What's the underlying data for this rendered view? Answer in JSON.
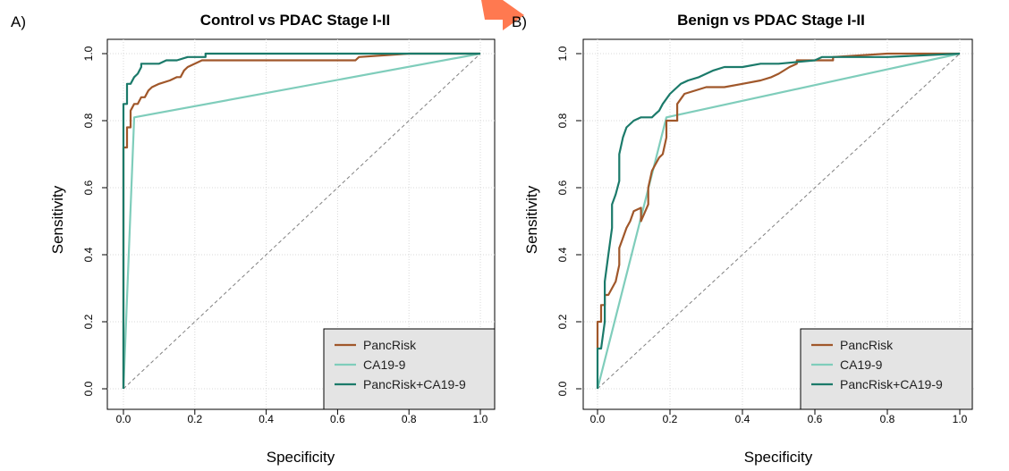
{
  "page": {
    "background": "#ffffff",
    "decoration": {
      "name": "orange-arrow-shape",
      "color": "#ff6a3d"
    }
  },
  "chart_data": [
    {
      "panel_label": "A)",
      "type": "line",
      "title": "Control  vs PDAC Stage I-II",
      "xlabel": "Specificity",
      "ylabel": "Sensitivity",
      "xlim": [
        0,
        1
      ],
      "ylim": [
        0,
        1
      ],
      "x_ticks": [
        "0.0",
        "0.2",
        "0.4",
        "0.6",
        "0.8",
        "1.0"
      ],
      "y_ticks": [
        "0.0",
        "0.2",
        "0.4",
        "0.6",
        "0.8",
        "1.0"
      ],
      "grid": true,
      "legend_position": "bottom-right",
      "reference_line": {
        "style": "dashed",
        "color": "#808080",
        "x": [
          0,
          1
        ],
        "y": [
          0,
          1
        ]
      },
      "series": [
        {
          "name": "PancRisk",
          "color": "#a0572a",
          "x": [
            0,
            0,
            0.01,
            0.01,
            0.02,
            0.02,
            0.03,
            0.04,
            0.05,
            0.06,
            0.07,
            0.08,
            0.1,
            0.13,
            0.15,
            0.16,
            0.17,
            0.18,
            0.2,
            0.22,
            0.25,
            0.3,
            0.4,
            0.5,
            0.55,
            0.6,
            0.65,
            0.66,
            0.8,
            0.9,
            1.0
          ],
          "y": [
            0,
            0.72,
            0.72,
            0.78,
            0.78,
            0.83,
            0.85,
            0.85,
            0.87,
            0.87,
            0.89,
            0.9,
            0.91,
            0.92,
            0.93,
            0.93,
            0.95,
            0.96,
            0.97,
            0.98,
            0.98,
            0.98,
            0.98,
            0.98,
            0.98,
            0.98,
            0.98,
            0.99,
            1.0,
            1.0,
            1.0
          ]
        },
        {
          "name": "CA19-9",
          "color": "#7fcdbb",
          "x": [
            0,
            0.03,
            1.0
          ],
          "y": [
            0,
            0.81,
            1.0
          ]
        },
        {
          "name": "PancRisk+CA19-9",
          "color": "#1b7a6a",
          "x": [
            0,
            0,
            0.01,
            0.01,
            0.02,
            0.03,
            0.04,
            0.05,
            0.05,
            0.07,
            0.08,
            0.1,
            0.12,
            0.15,
            0.18,
            0.23,
            0.23,
            0.3,
            0.5,
            0.7,
            1.0
          ],
          "y": [
            0,
            0.85,
            0.85,
            0.91,
            0.91,
            0.93,
            0.94,
            0.96,
            0.97,
            0.97,
            0.97,
            0.97,
            0.98,
            0.98,
            0.99,
            0.99,
            1.0,
            1.0,
            1.0,
            1.0,
            1.0
          ]
        }
      ]
    },
    {
      "panel_label": "B)",
      "type": "line",
      "title": "Benign vs PDAC Stage I-II",
      "xlabel": "Specificity",
      "ylabel": "Sensitivity",
      "xlim": [
        0,
        1
      ],
      "ylim": [
        0,
        1
      ],
      "x_ticks": [
        "0.0",
        "0.2",
        "0.4",
        "0.6",
        "0.8",
        "1.0"
      ],
      "y_ticks": [
        "0.0",
        "0.2",
        "0.4",
        "0.6",
        "0.8",
        "1.0"
      ],
      "grid": true,
      "legend_position": "bottom-right",
      "reference_line": {
        "style": "dashed",
        "color": "#808080",
        "x": [
          0,
          1
        ],
        "y": [
          0,
          1
        ]
      },
      "series": [
        {
          "name": "PancRisk",
          "color": "#a0572a",
          "x": [
            0,
            0,
            0.01,
            0.01,
            0.02,
            0.02,
            0.03,
            0.04,
            0.05,
            0.06,
            0.06,
            0.07,
            0.08,
            0.09,
            0.1,
            0.12,
            0.12,
            0.14,
            0.14,
            0.15,
            0.16,
            0.17,
            0.18,
            0.19,
            0.19,
            0.22,
            0.22,
            0.24,
            0.3,
            0.35,
            0.4,
            0.45,
            0.48,
            0.5,
            0.53,
            0.55,
            0.55,
            0.6,
            0.65,
            0.65,
            0.8,
            1.0
          ],
          "y": [
            0.12,
            0.2,
            0.2,
            0.25,
            0.25,
            0.28,
            0.28,
            0.3,
            0.32,
            0.37,
            0.42,
            0.45,
            0.48,
            0.5,
            0.53,
            0.54,
            0.5,
            0.55,
            0.6,
            0.65,
            0.67,
            0.69,
            0.7,
            0.75,
            0.8,
            0.8,
            0.85,
            0.88,
            0.9,
            0.9,
            0.91,
            0.92,
            0.93,
            0.94,
            0.96,
            0.97,
            0.98,
            0.98,
            0.98,
            0.99,
            1.0,
            1.0
          ]
        },
        {
          "name": "CA19-9",
          "color": "#7fcdbb",
          "x": [
            0,
            0.19,
            1.0
          ],
          "y": [
            0,
            0.81,
            1.0
          ]
        },
        {
          "name": "PancRisk+CA19-9",
          "color": "#1b7a6a",
          "x": [
            0,
            0,
            0.01,
            0.02,
            0.02,
            0.03,
            0.04,
            0.04,
            0.05,
            0.06,
            0.06,
            0.07,
            0.08,
            0.1,
            0.12,
            0.15,
            0.16,
            0.17,
            0.18,
            0.2,
            0.22,
            0.23,
            0.25,
            0.28,
            0.3,
            0.32,
            0.35,
            0.4,
            0.45,
            0.5,
            0.6,
            0.62,
            0.8,
            1.0
          ],
          "y": [
            0,
            0.12,
            0.12,
            0.2,
            0.32,
            0.4,
            0.48,
            0.55,
            0.58,
            0.62,
            0.7,
            0.75,
            0.78,
            0.8,
            0.81,
            0.81,
            0.82,
            0.83,
            0.85,
            0.88,
            0.9,
            0.91,
            0.92,
            0.93,
            0.94,
            0.95,
            0.96,
            0.96,
            0.97,
            0.97,
            0.98,
            0.99,
            0.99,
            1.0
          ]
        }
      ]
    }
  ]
}
